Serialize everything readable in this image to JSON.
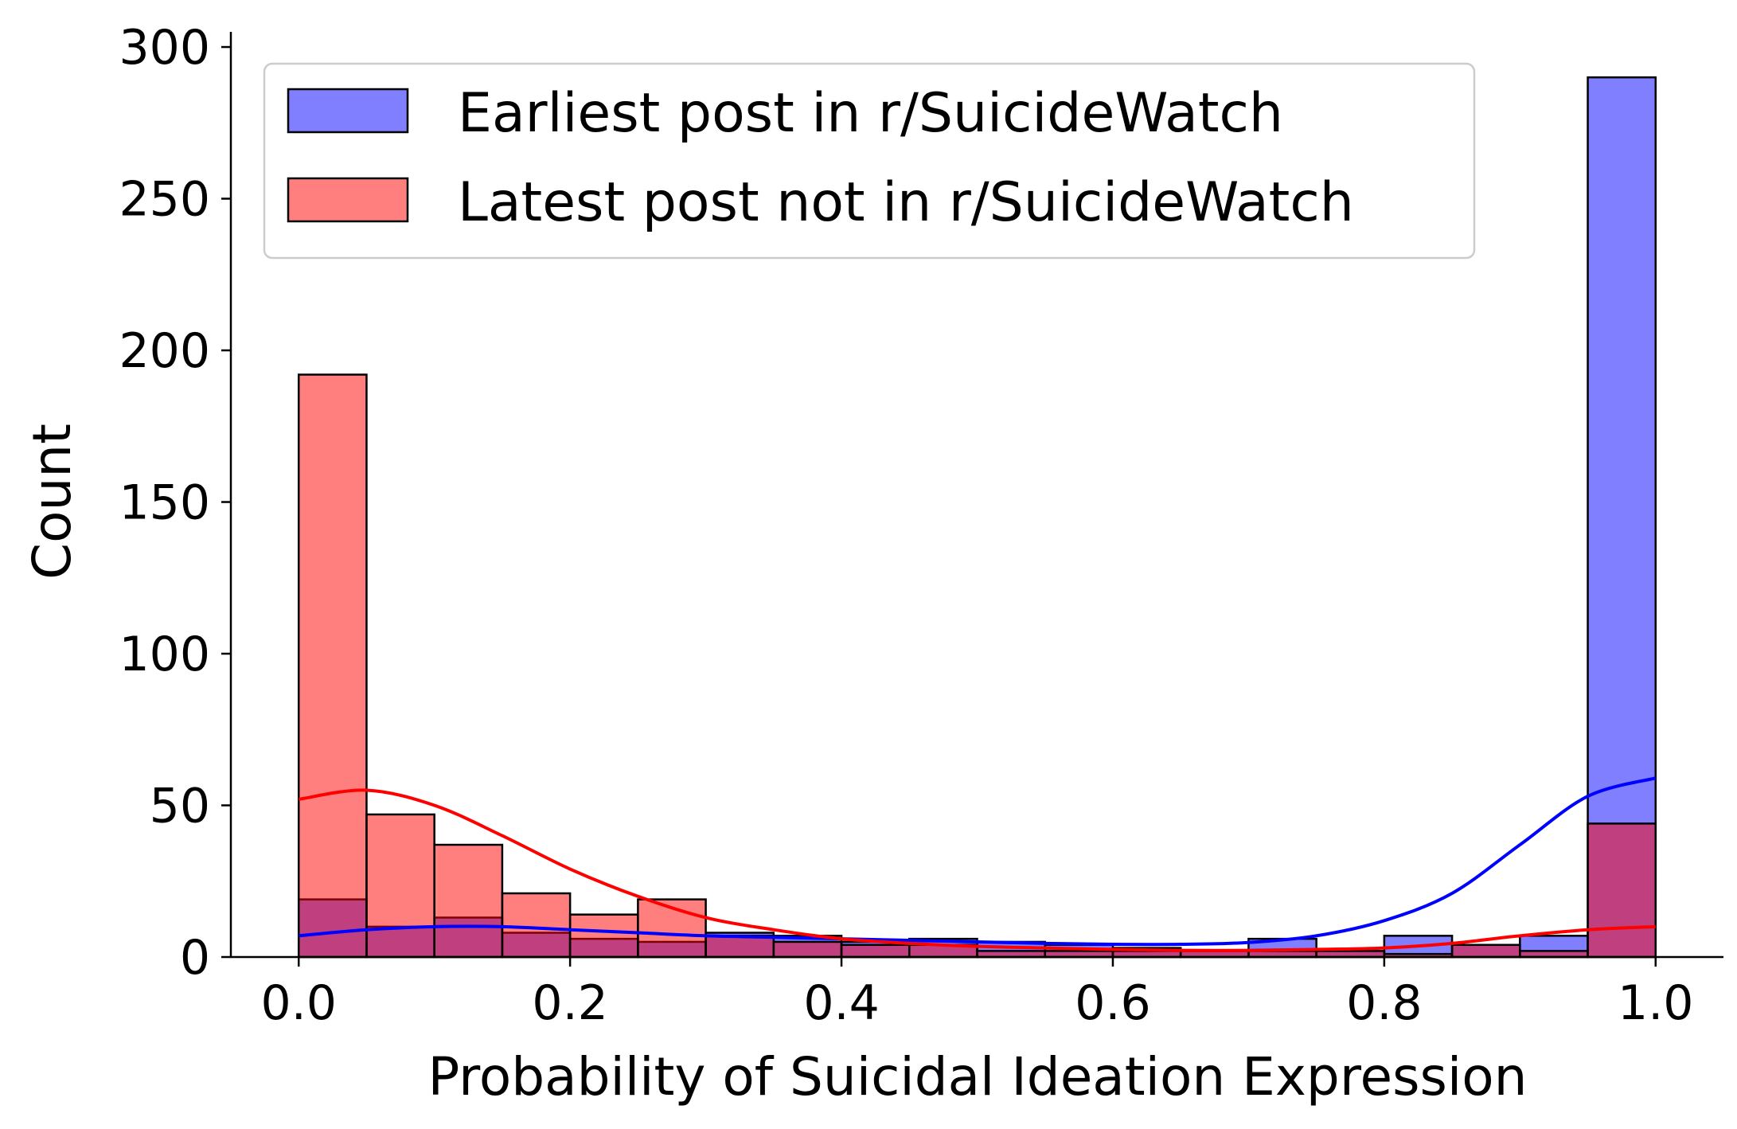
{
  "chart_data": {
    "type": "histogram",
    "title": "",
    "xlabel": "Probability of Suicidal Ideation Expression",
    "ylabel": "Count",
    "xlim": [
      -0.05,
      1.05
    ],
    "ylim": [
      0,
      305
    ],
    "xticks": [
      0.0,
      0.2,
      0.4,
      0.6,
      0.8,
      1.0
    ],
    "xtick_labels": [
      "0.0",
      "0.2",
      "0.4",
      "0.6",
      "0.8",
      "1.0"
    ],
    "yticks": [
      0,
      50,
      100,
      150,
      200,
      250,
      300
    ],
    "ytick_labels": [
      "0",
      "50",
      "100",
      "150",
      "200",
      "250",
      "300"
    ],
    "bin_edges": [
      0.0,
      0.05,
      0.1,
      0.15,
      0.2,
      0.25,
      0.3,
      0.35,
      0.4,
      0.45,
      0.5,
      0.55,
      0.6,
      0.65,
      0.7,
      0.75,
      0.8,
      0.85,
      0.9,
      0.95,
      1.0
    ],
    "legend_position": "upper-left",
    "series": [
      {
        "name": "Earliest post in r/SuicideWatch",
        "color": "#0000ff",
        "kde_color": "#0000ff",
        "values": [
          19,
          10,
          13,
          8,
          6,
          5,
          8,
          7,
          5,
          6,
          5,
          4,
          3,
          2,
          6,
          2,
          7,
          4,
          7,
          290
        ],
        "kde_x": [
          0.0,
          0.05,
          0.1,
          0.15,
          0.2,
          0.25,
          0.3,
          0.35,
          0.4,
          0.45,
          0.5,
          0.55,
          0.6,
          0.65,
          0.7,
          0.75,
          0.8,
          0.85,
          0.9,
          0.95,
          1.0
        ],
        "kde_y": [
          7,
          9,
          10,
          10,
          9,
          8,
          7,
          6.5,
          6,
          5.5,
          5,
          4.5,
          4.2,
          4.2,
          4.8,
          7,
          12,
          21,
          37,
          53,
          59
        ]
      },
      {
        "name": "Latest post not in r/SuicideWatch",
        "color": "#ff0000",
        "kde_color": "#ff0000",
        "values": [
          192,
          47,
          37,
          21,
          14,
          19,
          7,
          5,
          4,
          4,
          2,
          2,
          2,
          2,
          2,
          2,
          1,
          4,
          2,
          44
        ],
        "kde_x": [
          0.0,
          0.05,
          0.1,
          0.15,
          0.2,
          0.25,
          0.3,
          0.35,
          0.4,
          0.45,
          0.5,
          0.55,
          0.6,
          0.65,
          0.7,
          0.75,
          0.8,
          0.85,
          0.9,
          0.95,
          1.0
        ],
        "kde_y": [
          52,
          55,
          50,
          40,
          29,
          20,
          13,
          9,
          6,
          4.5,
          3.5,
          3,
          2.5,
          2.2,
          2.2,
          2.5,
          3,
          4.5,
          7,
          9,
          10
        ]
      }
    ]
  }
}
